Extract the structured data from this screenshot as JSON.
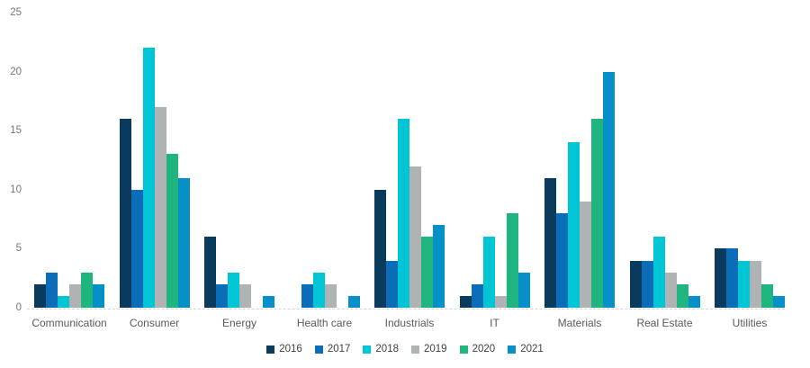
{
  "chart_data": {
    "type": "bar",
    "categories": [
      "Communication",
      "Consumer",
      "Energy",
      "Health care",
      "Industrials",
      "IT",
      "Materials",
      "Real Estate",
      "Utilities"
    ],
    "series": [
      {
        "name": "2016",
        "color": "#0a3a5c",
        "values": [
          2,
          16,
          6,
          0,
          10,
          1,
          11,
          4,
          5
        ]
      },
      {
        "name": "2017",
        "color": "#0b6db8",
        "values": [
          3,
          10,
          2,
          2,
          4,
          2,
          8,
          4,
          5
        ]
      },
      {
        "name": "2018",
        "color": "#00c5d4",
        "values": [
          1,
          22,
          3,
          3,
          16,
          6,
          14,
          6,
          4
        ]
      },
      {
        "name": "2019",
        "color": "#b0b3b4",
        "values": [
          2,
          17,
          2,
          2,
          12,
          1,
          9,
          3,
          4
        ]
      },
      {
        "name": "2020",
        "color": "#20b57e",
        "values": [
          3,
          13,
          0,
          0,
          6,
          8,
          16,
          2,
          2
        ]
      },
      {
        "name": "2021",
        "color": "#0590c7",
        "values": [
          2,
          11,
          1,
          1,
          7,
          3,
          20,
          1,
          1
        ]
      }
    ],
    "ylim": [
      0,
      25
    ],
    "y_ticks": [
      0,
      5,
      10,
      15,
      20,
      25
    ],
    "xlabel": "",
    "ylabel": "",
    "grid": false,
    "legend_position": "bottom",
    "axis_text_color": "#757575",
    "category_text_color": "#595959",
    "legend_text_color": "#404040",
    "baseline_color": "#d6d6d6"
  }
}
